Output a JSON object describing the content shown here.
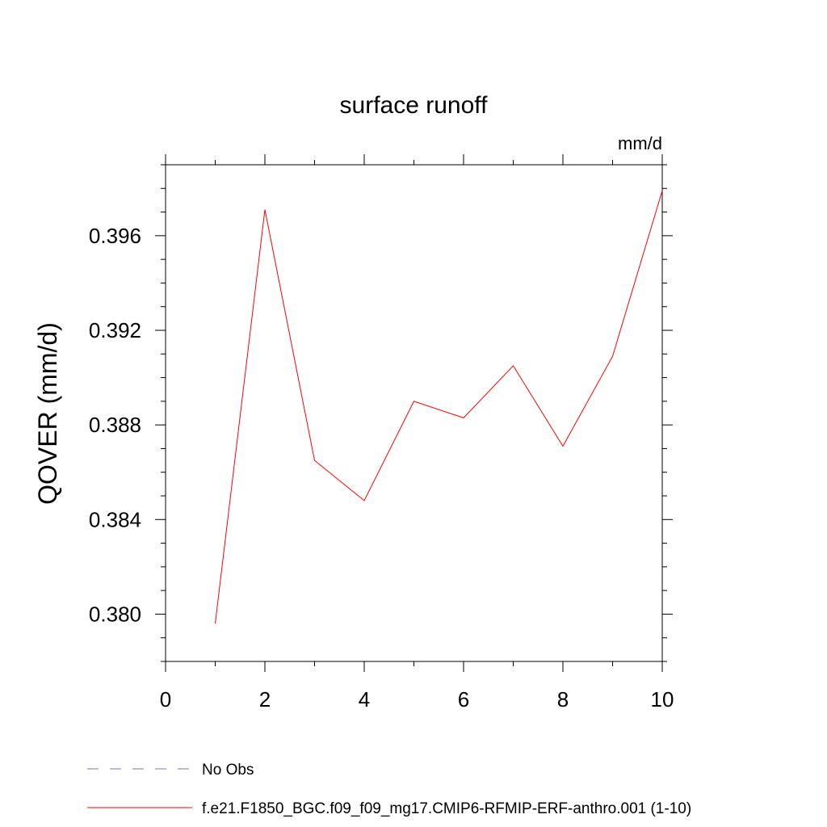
{
  "chart_data": {
    "type": "line",
    "title": "surface runoff",
    "units_label": "mm/d",
    "ylabel": "QOVER  (mm/d)",
    "xlabel": "",
    "xlim": [
      0,
      10
    ],
    "ylim": [
      0.378,
      0.399
    ],
    "x_major_ticks": [
      0,
      2,
      4,
      6,
      8,
      10
    ],
    "x_tick_labels": [
      "0",
      "2",
      "4",
      "6",
      "8",
      "10"
    ],
    "y_major_ticks": [
      0.38,
      0.384,
      0.388,
      0.392,
      0.396
    ],
    "y_tick_labels": [
      "0.380",
      "0.384",
      "0.388",
      "0.392",
      "0.396"
    ],
    "grid": false,
    "legend_position": "bottom",
    "series": [
      {
        "name": "f.e21.F1850_BGC.f09_f09_mg17.CMIP6-RFMIP-ERF-anthro.001 (1-10)",
        "color": "#ff0000",
        "dash": "solid",
        "x": [
          1,
          2,
          3,
          4,
          5,
          6,
          7,
          8,
          9,
          10
        ],
        "y": [
          0.3796,
          0.3971,
          0.3865,
          0.3848,
          0.389,
          0.3883,
          0.3905,
          0.3871,
          0.3909,
          0.3979
        ]
      }
    ],
    "legend_entries": [
      {
        "label": "No Obs",
        "color": "#7b6fb0",
        "dash": "dashed"
      },
      {
        "label": "f.e21.F1850_BGC.f09_f09_mg17.CMIP6-RFMIP-ERF-anthro.001 (1-10)",
        "color": "#ff0000",
        "dash": "solid"
      }
    ]
  }
}
